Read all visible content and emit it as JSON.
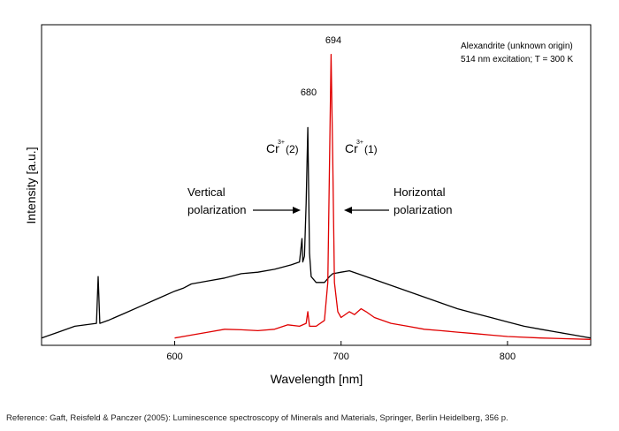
{
  "chart_data": {
    "type": "line",
    "xlabel": "Wavelength [nm]",
    "ylabel": "Intensity [a.u.]",
    "xlim": [
      520,
      850
    ],
    "ylim": [
      0,
      100
    ],
    "xticks": [
      "600",
      "700",
      "800"
    ],
    "xtick_values": [
      600,
      700,
      800
    ],
    "y_ticklabels_shown": false,
    "grid": false,
    "series": [
      {
        "color": "#000000",
        "points": [
          [
            520,
            1
          ],
          [
            530,
            3
          ],
          [
            540,
            5
          ],
          [
            553,
            6
          ],
          [
            554,
            22
          ],
          [
            555,
            6
          ],
          [
            560,
            7
          ],
          [
            570,
            9.5
          ],
          [
            580,
            12
          ],
          [
            590,
            14.5
          ],
          [
            600,
            17
          ],
          [
            605,
            18
          ],
          [
            610,
            19.5
          ],
          [
            620,
            20.5
          ],
          [
            630,
            21.5
          ],
          [
            640,
            23
          ],
          [
            650,
            23.5
          ],
          [
            660,
            24.5
          ],
          [
            670,
            26
          ],
          [
            675,
            27
          ],
          [
            676.5,
            35
          ],
          [
            677,
            27
          ],
          [
            678,
            29
          ],
          [
            679,
            47
          ],
          [
            680,
            73
          ],
          [
            681,
            30
          ],
          [
            682,
            22
          ],
          [
            685,
            20
          ],
          [
            690,
            20
          ],
          [
            693,
            22
          ],
          [
            695,
            23
          ],
          [
            700,
            23.5
          ],
          [
            705,
            24
          ],
          [
            710,
            23
          ],
          [
            720,
            21
          ],
          [
            730,
            19
          ],
          [
            740,
            17
          ],
          [
            750,
            15
          ],
          [
            760,
            13
          ],
          [
            770,
            11
          ],
          [
            780,
            9.5
          ],
          [
            790,
            8
          ],
          [
            800,
            6.5
          ],
          [
            810,
            5
          ],
          [
            820,
            4
          ],
          [
            830,
            3
          ],
          [
            840,
            2
          ],
          [
            850,
            1
          ]
        ]
      },
      {
        "color": "#e00000",
        "points": [
          [
            600,
            1
          ],
          [
            610,
            2
          ],
          [
            620,
            3
          ],
          [
            630,
            4
          ],
          [
            640,
            3.8
          ],
          [
            650,
            3.5
          ],
          [
            660,
            4
          ],
          [
            668,
            5.5
          ],
          [
            675,
            5
          ],
          [
            679,
            6
          ],
          [
            680,
            10
          ],
          [
            681,
            5
          ],
          [
            685,
            5
          ],
          [
            690,
            7
          ],
          [
            692,
            20
          ],
          [
            693,
            60
          ],
          [
            694,
            98
          ],
          [
            695,
            62
          ],
          [
            696,
            20
          ],
          [
            698,
            10
          ],
          [
            700,
            8
          ],
          [
            705,
            10
          ],
          [
            708,
            9
          ],
          [
            712,
            11
          ],
          [
            715,
            10
          ],
          [
            720,
            8
          ],
          [
            730,
            6
          ],
          [
            740,
            5
          ],
          [
            750,
            4
          ],
          [
            760,
            3.5
          ],
          [
            770,
            3
          ],
          [
            780,
            2.5
          ],
          [
            790,
            2
          ],
          [
            800,
            1.5
          ],
          [
            820,
            1
          ],
          [
            850,
            0.5
          ]
        ]
      }
    ],
    "peak_labels": [
      "694",
      "680"
    ],
    "annotations": {
      "sample_line1": "Alexandrite (unknown origin)",
      "sample_line2": "514 nm excitation; T = 300 K",
      "cr1_label": "Cr",
      "cr1_sup": "3+",
      "cr1_suffix": "(1)",
      "cr2_label": "Cr",
      "cr2_sup": "3+",
      "cr2_suffix": "(2)",
      "vertical_line1": "Vertical",
      "vertical_line2": "polarization",
      "horizontal_line1": "Horizontal",
      "horizontal_line2": "polarization"
    }
  },
  "reference": "Reference: Gaft, Reisfeld & Panczer (2005): Luminescence spectroscopy of Minerals and Materials, Springer, Berlin Heidelberg, 356 p."
}
